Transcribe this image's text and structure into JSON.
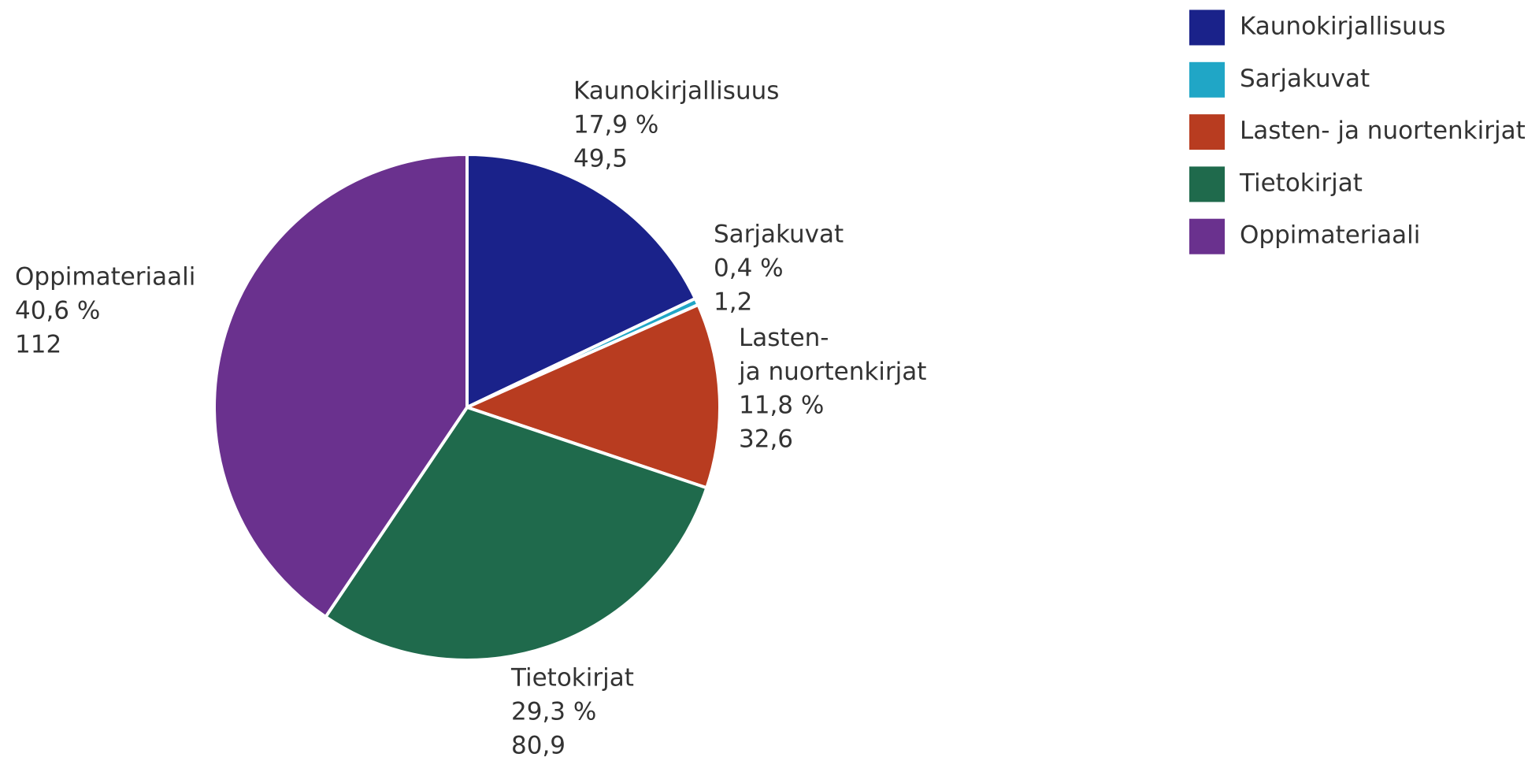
{
  "chart_data": {
    "type": "pie",
    "categories": [
      "Kaunokirjallisuus",
      "Sarjakuvat",
      "Lasten- ja nuortenkirjat",
      "Tietokirjat",
      "Oppimateriaali"
    ],
    "values": [
      49.5,
      1.2,
      32.6,
      80.9,
      112
    ],
    "value_labels": [
      "49,5",
      "1,2",
      "32,6",
      "80,9",
      "112"
    ],
    "percentages": [
      17.9,
      0.4,
      11.8,
      29.3,
      40.6
    ],
    "percentage_labels": [
      "17,9 %",
      "0,4 %",
      "11,8 %",
      "29,3 %",
      "40,6 %"
    ],
    "colors": [
      "#1a228a",
      "#20a6c6",
      "#b83c20",
      "#1f6a4c",
      "#6a318e"
    ],
    "legend": "top-right"
  }
}
